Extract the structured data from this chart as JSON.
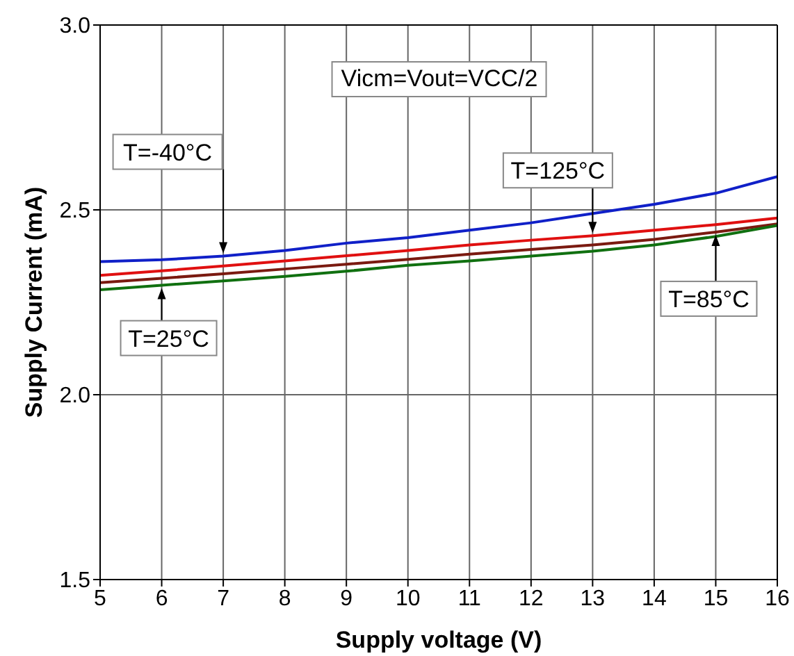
{
  "chart_data": {
    "type": "line",
    "xlabel": "Supply voltage (V)",
    "ylabel": "Supply Current (mA)",
    "annotations": [
      "Vicm=Vout=VCC/2"
    ],
    "x": [
      5,
      6,
      7,
      8,
      9,
      10,
      11,
      12,
      13,
      14,
      15,
      16
    ],
    "series": [
      {
        "name": "T=-40°C",
        "color": "#1020c8",
        "values": [
          2.36,
          2.365,
          2.375,
          2.39,
          2.41,
          2.425,
          2.445,
          2.465,
          2.49,
          2.515,
          2.545,
          2.59
        ]
      },
      {
        "name": "T=125°C",
        "color": "#e01010",
        "values": [
          2.323,
          2.335,
          2.348,
          2.362,
          2.376,
          2.39,
          2.405,
          2.418,
          2.43,
          2.445,
          2.46,
          2.478
        ]
      },
      {
        "name": "T=85°C",
        "color": "#7a1a10",
        "values": [
          2.303,
          2.315,
          2.327,
          2.34,
          2.353,
          2.366,
          2.38,
          2.393,
          2.405,
          2.42,
          2.44,
          2.462
        ]
      },
      {
        "name": "T=25°C",
        "color": "#107010",
        "values": [
          2.284,
          2.296,
          2.308,
          2.32,
          2.334,
          2.35,
          2.362,
          2.375,
          2.388,
          2.405,
          2.428,
          2.458
        ]
      }
    ],
    "xlim": [
      5,
      16
    ],
    "xticks": [
      5,
      6,
      7,
      8,
      9,
      10,
      11,
      12,
      13,
      14,
      15,
      16
    ],
    "ylim": [
      1.5,
      3.0
    ],
    "yticks": [
      1.5,
      {
        "value": 2,
        "label": "2.0"
      },
      2.5,
      {
        "value": 3,
        "label": "3.0"
      }
    ],
    "grid": true,
    "marker": "none",
    "line_style": "solid"
  }
}
